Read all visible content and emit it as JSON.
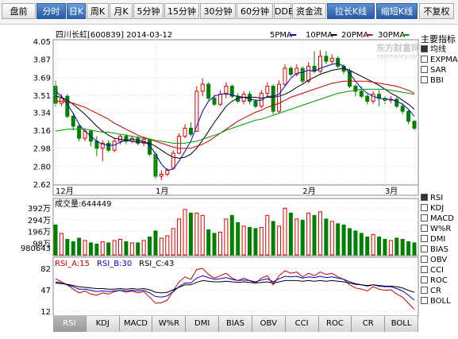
{
  "toolbar": [
    {
      "label": "盘前",
      "active": false,
      "style": "normal"
    },
    {
      "label": "分时",
      "active": false,
      "style": "blue"
    },
    {
      "label": "日K",
      "active": true,
      "style": "normal"
    },
    {
      "label": "周K",
      "active": false,
      "style": "normal"
    },
    {
      "label": "月K",
      "active": false,
      "style": "normal"
    },
    {
      "label": "5分钟",
      "active": false,
      "style": "normal"
    },
    {
      "label": "15分钟",
      "active": false,
      "style": "normal"
    },
    {
      "label": "30分钟",
      "active": false,
      "style": "normal"
    },
    {
      "label": "60分钟",
      "active": false,
      "style": "normal"
    },
    {
      "label": "DDE",
      "active": false,
      "style": "normal"
    },
    {
      "label": "资金流",
      "active": false,
      "style": "normal"
    },
    {
      "label": "拉长K线",
      "active": false,
      "style": "blue"
    },
    {
      "label": "缩短K线",
      "active": false,
      "style": "blue"
    },
    {
      "label": "不复权",
      "active": false,
      "style": "normal"
    }
  ],
  "header": {
    "stock": "四川长虹[600839] 2014-03-12"
  },
  "legend": [
    {
      "label": "5PMA",
      "color": "#0000cc"
    },
    {
      "label": "10PMA",
      "color": "#000000"
    },
    {
      "label": "20PMA",
      "color": "#cc0000"
    },
    {
      "label": "30PMA",
      "color": "#009900"
    }
  ],
  "watermark": {
    "name": "东方财富网",
    "url": "eastmoney.com"
  },
  "price_axis": [
    "4.05",
    "3.87",
    "3.69",
    "3.51",
    "3.34",
    "3.16",
    "2.98",
    "2.80",
    "2.62"
  ],
  "month_labels": [
    "12月",
    "1月",
    "2月",
    "3月"
  ],
  "indicators_main": {
    "title": "主要指标",
    "items": [
      {
        "label": "均线",
        "checked": true
      },
      {
        "label": "EXPMA",
        "checked": false
      },
      {
        "label": "SAR",
        "checked": false
      },
      {
        "label": "BBI",
        "checked": false
      }
    ]
  },
  "volume": {
    "title": "成交量:644449",
    "axis": [
      "392万",
      "294万",
      "196万",
      "98万",
      "980643"
    ]
  },
  "rsi": {
    "labels": [
      {
        "text": "RSI_A:15",
        "color": "#cc0000"
      },
      {
        "text": "RSI_B:30",
        "color": "#0000cc"
      },
      {
        "text": "RSI_C:43",
        "color": "#000000"
      }
    ],
    "axis": [
      "82",
      "47",
      "12"
    ]
  },
  "indicators_sub": [
    {
      "label": "RSI",
      "checked": true
    },
    {
      "label": "KDJ",
      "checked": false
    },
    {
      "label": "MACD",
      "checked": false
    },
    {
      "label": "W%R",
      "checked": false
    },
    {
      "label": "DMI",
      "checked": false
    },
    {
      "label": "BIAS",
      "checked": false
    },
    {
      "label": "OBV",
      "checked": false
    },
    {
      "label": "CCI",
      "checked": false
    },
    {
      "label": "ROC",
      "checked": false
    },
    {
      "label": "CR",
      "checked": false
    },
    {
      "label": "BOLL",
      "checked": false
    }
  ],
  "tabs": [
    {
      "label": "RSI",
      "active": true
    },
    {
      "label": "KDJ",
      "active": false
    },
    {
      "label": "MACD",
      "active": false
    },
    {
      "label": "W%R",
      "active": false
    },
    {
      "label": "DMI",
      "active": false
    },
    {
      "label": "BIAS",
      "active": false
    },
    {
      "label": "OBV",
      "active": false
    },
    {
      "label": "CCI",
      "active": false
    },
    {
      "label": "ROC",
      "active": false
    },
    {
      "label": "CR",
      "active": false
    },
    {
      "label": "BOLL",
      "active": false
    }
  ],
  "chart_data": {
    "type": "candlestick",
    "price_range": [
      2.62,
      4.05
    ],
    "candles": [
      [
        3.6,
        3.43,
        3.66,
        3.4
      ],
      [
        3.43,
        3.48,
        3.52,
        3.4
      ],
      [
        3.5,
        3.3,
        3.52,
        3.28
      ],
      [
        3.3,
        3.2,
        3.33,
        3.16
      ],
      [
        3.2,
        3.08,
        3.22,
        3.05
      ],
      [
        3.08,
        3.15,
        3.18,
        3.05
      ],
      [
        3.15,
        3.05,
        3.17,
        3.0
      ],
      [
        3.05,
        2.98,
        3.1,
        2.9
      ],
      [
        2.98,
        3.03,
        3.06,
        2.85
      ],
      [
        3.03,
        2.96,
        3.06,
        2.94
      ],
      [
        2.96,
        3.05,
        3.08,
        2.94
      ],
      [
        3.05,
        3.1,
        3.12,
        3.02
      ],
      [
        3.1,
        3.05,
        3.12,
        3.02
      ],
      [
        3.05,
        3.08,
        3.1,
        3.03
      ],
      [
        3.08,
        3.03,
        3.1,
        3.01
      ],
      [
        3.03,
        3.07,
        3.09,
        3.0
      ],
      [
        3.07,
        2.92,
        3.08,
        2.9
      ],
      [
        2.92,
        2.7,
        2.95,
        2.67
      ],
      [
        2.7,
        2.72,
        2.76,
        2.66
      ],
      [
        2.72,
        2.76,
        2.78,
        2.7
      ],
      [
        2.78,
        2.93,
        2.96,
        2.77
      ],
      [
        2.93,
        3.1,
        3.13,
        2.92
      ],
      [
        3.1,
        3.18,
        3.22,
        3.08
      ],
      [
        3.18,
        3.12,
        3.24,
        3.1
      ],
      [
        3.15,
        3.55,
        3.6,
        3.14
      ],
      [
        3.55,
        3.62,
        3.68,
        3.5
      ],
      [
        3.62,
        3.48,
        3.64,
        3.46
      ],
      [
        3.48,
        3.42,
        3.52,
        3.4
      ],
      [
        3.42,
        3.52,
        3.56,
        3.4
      ],
      [
        3.52,
        3.6,
        3.64,
        3.48
      ],
      [
        3.6,
        3.5,
        3.62,
        3.48
      ],
      [
        3.5,
        3.45,
        3.53,
        3.43
      ],
      [
        3.45,
        3.52,
        3.55,
        3.42
      ],
      [
        3.52,
        3.45,
        3.55,
        3.42
      ],
      [
        3.45,
        3.4,
        3.47,
        3.38
      ],
      [
        3.4,
        3.53,
        3.56,
        3.38
      ],
      [
        3.53,
        3.6,
        3.64,
        3.5
      ],
      [
        3.6,
        3.35,
        3.62,
        3.32
      ],
      [
        3.35,
        3.62,
        3.66,
        3.33
      ],
      [
        3.62,
        3.78,
        3.82,
        3.6
      ],
      [
        3.78,
        3.72,
        3.8,
        3.7
      ],
      [
        3.72,
        3.78,
        3.82,
        3.7
      ],
      [
        3.78,
        3.65,
        3.8,
        3.62
      ],
      [
        3.65,
        3.8,
        3.84,
        3.63
      ],
      [
        3.8,
        3.75,
        3.95,
        3.73
      ],
      [
        3.75,
        3.9,
        3.96,
        3.73
      ],
      [
        3.9,
        3.85,
        3.95,
        3.82
      ],
      [
        3.85,
        3.88,
        3.92,
        3.82
      ],
      [
        3.88,
        3.8,
        3.9,
        3.78
      ],
      [
        3.8,
        3.75,
        3.82,
        3.72
      ],
      [
        3.75,
        3.6,
        3.78,
        3.58
      ],
      [
        3.6,
        3.55,
        3.62,
        3.5
      ],
      [
        3.55,
        3.5,
        3.6,
        3.48
      ],
      [
        3.5,
        3.45,
        3.52,
        3.42
      ],
      [
        3.45,
        3.52,
        3.55,
        3.42
      ],
      [
        3.52,
        3.48,
        3.56,
        3.4
      ],
      [
        3.48,
        3.46,
        3.5,
        3.42
      ],
      [
        3.46,
        3.47,
        3.5,
        3.43
      ],
      [
        3.47,
        3.4,
        3.49,
        3.38
      ],
      [
        3.4,
        3.35,
        3.43,
        3.32
      ],
      [
        3.35,
        3.25,
        3.36,
        3.22
      ],
      [
        3.25,
        3.18,
        3.26,
        3.16
      ]
    ],
    "volumes": [
      250,
      180,
      130,
      110,
      140,
      120,
      100,
      90,
      110,
      100,
      120,
      130,
      110,
      100,
      100,
      120,
      150,
      200,
      140,
      160,
      220,
      300,
      380,
      350,
      350,
      330,
      210,
      180,
      190,
      300,
      330,
      270,
      240,
      230,
      220,
      230,
      330,
      280,
      240,
      390,
      350,
      300,
      290,
      350,
      330,
      360,
      300,
      280,
      260,
      250,
      220,
      200,
      180,
      150,
      170,
      150,
      130,
      120,
      140,
      130,
      110,
      100
    ],
    "ma": [
      {
        "name": "5PMA",
        "color": "#0000cc",
        "values": [
          3.55,
          3.5,
          3.42,
          3.33,
          3.22,
          3.15,
          3.1,
          3.05,
          3.02,
          3.01,
          3.01,
          3.04,
          3.06,
          3.07,
          3.06,
          3.05,
          3.01,
          2.92,
          2.82,
          2.76,
          2.77,
          2.85,
          2.95,
          3.05,
          3.2,
          3.35,
          3.45,
          3.5,
          3.52,
          3.53,
          3.51,
          3.5,
          3.49,
          3.47,
          3.46,
          3.46,
          3.5,
          3.5,
          3.52,
          3.6,
          3.68,
          3.73,
          3.74,
          3.76,
          3.75,
          3.78,
          3.8,
          3.82,
          3.83,
          3.8,
          3.73,
          3.65,
          3.58,
          3.53,
          3.5,
          3.48,
          3.47,
          3.47,
          3.45,
          3.42,
          3.37,
          3.3
        ]
      },
      {
        "name": "10PMA",
        "color": "#000000",
        "values": [
          3.5,
          3.49,
          3.46,
          3.42,
          3.37,
          3.32,
          3.26,
          3.2,
          3.15,
          3.11,
          3.08,
          3.07,
          3.06,
          3.05,
          3.04,
          3.04,
          3.03,
          3.0,
          2.96,
          2.92,
          2.89,
          2.88,
          2.89,
          2.92,
          2.98,
          3.06,
          3.15,
          3.24,
          3.32,
          3.4,
          3.45,
          3.48,
          3.49,
          3.49,
          3.49,
          3.48,
          3.49,
          3.49,
          3.5,
          3.52,
          3.55,
          3.59,
          3.62,
          3.66,
          3.69,
          3.72,
          3.74,
          3.76,
          3.77,
          3.78,
          3.76,
          3.73,
          3.7,
          3.67,
          3.64,
          3.61,
          3.57,
          3.53,
          3.5,
          3.46,
          3.42,
          3.37
        ]
      },
      {
        "name": "20PMA",
        "color": "#cc0000",
        "values": [
          3.45,
          3.45,
          3.44,
          3.43,
          3.41,
          3.39,
          3.36,
          3.33,
          3.3,
          3.27,
          3.23,
          3.2,
          3.17,
          3.14,
          3.11,
          3.09,
          3.07,
          3.05,
          3.03,
          3.01,
          2.99,
          2.98,
          2.98,
          2.98,
          3.0,
          3.02,
          3.05,
          3.09,
          3.13,
          3.17,
          3.21,
          3.25,
          3.28,
          3.31,
          3.34,
          3.36,
          3.39,
          3.41,
          3.43,
          3.46,
          3.49,
          3.51,
          3.53,
          3.55,
          3.57,
          3.59,
          3.61,
          3.63,
          3.64,
          3.65,
          3.65,
          3.65,
          3.65,
          3.65,
          3.64,
          3.63,
          3.62,
          3.61,
          3.6,
          3.58,
          3.56,
          3.53
        ]
      },
      {
        "name": "30PMA",
        "color": "#009900",
        "values": [
          3.15,
          3.16,
          3.17,
          3.17,
          3.17,
          3.17,
          3.16,
          3.15,
          3.14,
          3.14,
          3.13,
          3.12,
          3.11,
          3.1,
          3.09,
          3.08,
          3.07,
          3.06,
          3.05,
          3.04,
          3.03,
          3.03,
          3.03,
          3.04,
          3.05,
          3.07,
          3.09,
          3.11,
          3.13,
          3.16,
          3.18,
          3.2,
          3.22,
          3.24,
          3.26,
          3.27,
          3.29,
          3.31,
          3.33,
          3.35,
          3.37,
          3.39,
          3.41,
          3.43,
          3.45,
          3.47,
          3.49,
          3.51,
          3.53,
          3.54,
          3.55,
          3.56,
          3.57,
          3.57,
          3.57,
          3.57,
          3.57,
          3.56,
          3.55,
          3.54,
          3.53,
          3.52
        ]
      }
    ],
    "rsi_series": [
      {
        "name": "RSI_A",
        "color": "#cc0000",
        "values": [
          65,
          60,
          55,
          48,
          42,
          45,
          40,
          38,
          42,
          40,
          44,
          46,
          43,
          45,
          42,
          44,
          35,
          25,
          26,
          30,
          45,
          60,
          68,
          64,
          80,
          82,
          72,
          66,
          70,
          74,
          66,
          62,
          66,
          62,
          58,
          66,
          70,
          55,
          70,
          78,
          74,
          76,
          68,
          74,
          70,
          76,
          72,
          74,
          68,
          64,
          55,
          50,
          48,
          45,
          52,
          48,
          46,
          47,
          40,
          35,
          25,
          15
        ]
      },
      {
        "name": "RSI_B",
        "color": "#0000cc",
        "values": [
          60,
          58,
          55,
          52,
          48,
          48,
          46,
          44,
          45,
          44,
          45,
          46,
          45,
          46,
          45,
          46,
          42,
          36,
          35,
          37,
          44,
          52,
          58,
          58,
          66,
          70,
          67,
          64,
          65,
          67,
          64,
          62,
          63,
          62,
          60,
          63,
          65,
          60,
          65,
          69,
          68,
          69,
          66,
          68,
          67,
          69,
          67,
          68,
          66,
          64,
          60,
          57,
          55,
          53,
          55,
          53,
          52,
          52,
          49,
          45,
          38,
          30
        ]
      },
      {
        "name": "RSI_C",
        "color": "#000000",
        "values": [
          58,
          57,
          56,
          54,
          52,
          51,
          50,
          49,
          49,
          48,
          48,
          49,
          48,
          49,
          48,
          49,
          47,
          43,
          42,
          43,
          47,
          51,
          55,
          55,
          59,
          62,
          61,
          60,
          60,
          61,
          60,
          59,
          60,
          59,
          58,
          59,
          60,
          58,
          60,
          62,
          62,
          62,
          61,
          62,
          61,
          62,
          61,
          62,
          61,
          60,
          58,
          56,
          55,
          54,
          55,
          54,
          53,
          53,
          52,
          50,
          46,
          43
        ]
      }
    ],
    "rsi_range": [
      12,
      82
    ]
  }
}
